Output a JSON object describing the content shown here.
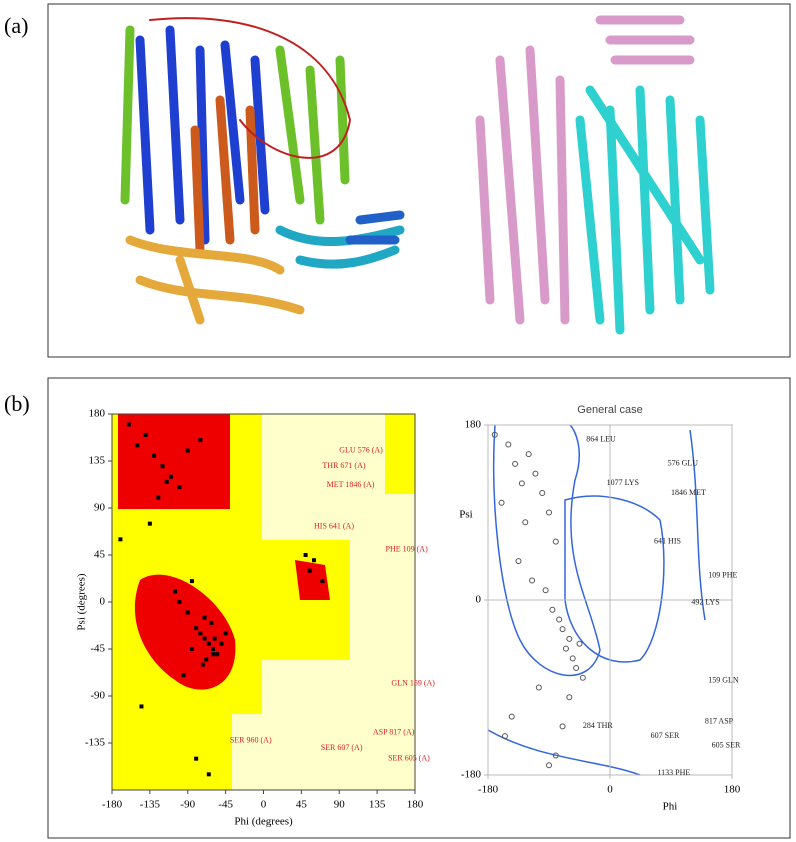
{
  "panels": {
    "a": "(a)",
    "b": "(b)"
  },
  "chart_data": [
    {
      "type": "scatter",
      "xlabel": "Phi (degrees)",
      "ylabel": "Psi (degrees)",
      "color": "#000000",
      "xlim": [
        -180,
        180
      ],
      "ylim": [
        -180,
        180
      ],
      "xticks": [
        -180,
        -135,
        -90,
        -45,
        0,
        45,
        90,
        135,
        180
      ],
      "yticks": [
        180,
        135,
        90,
        45,
        0,
        -45,
        -90,
        -135
      ],
      "x": [
        -65,
        -60,
        -70,
        -75,
        -55,
        -80,
        -62,
        -68,
        -90,
        -100,
        -50,
        -72,
        -58,
        -85,
        -120,
        -130,
        -110,
        -140,
        -150,
        -100,
        -90,
        -75,
        -160,
        -125,
        -115,
        -60,
        -70,
        60,
        55,
        -95,
        -145,
        -65,
        -80,
        -105,
        -135,
        -45,
        -170,
        -85,
        70,
        50
      ],
      "y": [
        -40,
        -45,
        -35,
        -30,
        -50,
        -25,
        -20,
        -55,
        -10,
        0,
        -40,
        -60,
        -35,
        -45,
        130,
        140,
        120,
        160,
        150,
        110,
        145,
        155,
        170,
        100,
        115,
        -50,
        -15,
        40,
        30,
        -70,
        -100,
        -165,
        -150,
        10,
        75,
        -30,
        60,
        20,
        20,
        45
      ],
      "annotations": [
        {
          "text": "GLU 576 (A)",
          "x": 90,
          "y": 145
        },
        {
          "text": "THR 671 (A)",
          "x": 70,
          "y": 130
        },
        {
          "text": "MET 1846 (A)",
          "x": 75,
          "y": 112
        },
        {
          "text": "HIS 641 (A)",
          "x": 60,
          "y": 72
        },
        {
          "text": "PHE 109 (A)",
          "x": 145,
          "y": 50
        },
        {
          "text": "GLN 159 (A)",
          "x": 152,
          "y": -78
        },
        {
          "text": "ASP 817 (A)",
          "x": 130,
          "y": -125
        },
        {
          "text": "SER 605 (A)",
          "x": 148,
          "y": -150
        },
        {
          "text": "SER 607 (A)",
          "x": 68,
          "y": -140
        },
        {
          "text": "SER 960 (A)",
          "x": -40,
          "y": -133
        }
      ]
    },
    {
      "type": "scatter",
      "title": "General case",
      "xlabel": "Phi",
      "ylabel": "Psi",
      "color": "#555555",
      "xlim": [
        -180,
        180
      ],
      "ylim": [
        -180,
        180
      ],
      "xticks": [
        -180,
        0,
        180
      ],
      "yticks": [
        180,
        0,
        -180
      ],
      "x": [
        -150,
        -140,
        -130,
        -120,
        -110,
        -100,
        -90,
        -80,
        -70,
        -60,
        -65,
        -75,
        -85,
        -55,
        -50,
        -160,
        -170,
        -125,
        -135,
        -95,
        -45,
        -40,
        -60,
        -70,
        -80,
        -90,
        -115,
        -105,
        -145,
        -155
      ],
      "y": [
        160,
        140,
        120,
        150,
        130,
        110,
        90,
        60,
        -30,
        -40,
        -50,
        -20,
        -10,
        -60,
        -70,
        100,
        170,
        80,
        40,
        10,
        -45,
        -80,
        -100,
        -130,
        -160,
        -170,
        20,
        -90,
        -120,
        -140
      ],
      "annotations": [
        {
          "text": "864 LEU",
          "x": -35,
          "y": 165
        },
        {
          "text": "576 GLU",
          "x": 85,
          "y": 140
        },
        {
          "text": "1077 LYS",
          "x": -5,
          "y": 120
        },
        {
          "text": "1846 MET",
          "x": 90,
          "y": 110
        },
        {
          "text": "641 HIS",
          "x": 65,
          "y": 60
        },
        {
          "text": "109 PHE",
          "x": 145,
          "y": 25
        },
        {
          "text": "492 LYS",
          "x": 120,
          "y": -3
        },
        {
          "text": "159 GLN",
          "x": 145,
          "y": -83
        },
        {
          "text": "284 THR",
          "x": -40,
          "y": -130
        },
        {
          "text": "607 SER",
          "x": 60,
          "y": -140
        },
        {
          "text": "817 ASP",
          "x": 140,
          "y": -125
        },
        {
          "text": "605 SER",
          "x": 150,
          "y": -150
        },
        {
          "text": "1133 PHE",
          "x": 70,
          "y": -178
        }
      ]
    }
  ]
}
